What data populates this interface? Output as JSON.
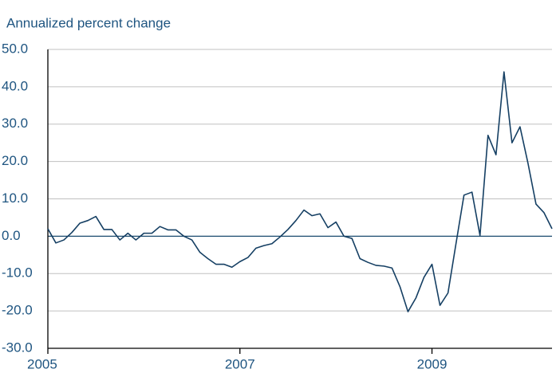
{
  "chart_data": {
    "type": "line",
    "title": "Annualized percent change",
    "categories": [
      "2005",
      null,
      null,
      null,
      null,
      null,
      null,
      null,
      null,
      null,
      null,
      null,
      null,
      null,
      null,
      null,
      null,
      null,
      null,
      null,
      null,
      null,
      null,
      null,
      "2007",
      null,
      null,
      null,
      null,
      null,
      null,
      null,
      null,
      null,
      null,
      null,
      null,
      null,
      null,
      null,
      null,
      null,
      null,
      null,
      null,
      null,
      null,
      null,
      "2009",
      null,
      null,
      null,
      null,
      null,
      null,
      null,
      null,
      null,
      null,
      null,
      null,
      null,
      null,
      null
    ],
    "values": [
      2,
      -1.8,
      -1,
      1,
      3.5,
      4.2,
      5.3,
      1.8,
      1.8,
      -1,
      0.8,
      -1,
      0.8,
      0.8,
      2.6,
      1.7,
      1.7,
      0,
      -1,
      -4.3,
      -6,
      -7.5,
      -7.5,
      -8.3,
      -6.8,
      -5.7,
      -3.2,
      -2.5,
      -2,
      -0.2,
      1.8,
      4.2,
      7,
      5.5,
      6,
      2.3,
      3.8,
      0,
      -0.6,
      -6,
      -7,
      -7.8,
      -8,
      -8.5,
      -13.5,
      -20.2,
      -16.5,
      -11,
      -7.5,
      -18.5,
      -15.2,
      -2,
      11,
      11.8,
      0.2,
      27,
      21.8,
      44,
      25,
      29.3,
      19.5,
      8.6,
      6.3,
      2
    ],
    "color": "#153f63",
    "ylim": [
      -30,
      50
    ],
    "yticks": [
      {
        "value": -30,
        "label": "-30.0"
      },
      {
        "value": -20,
        "label": "-20.0"
      },
      {
        "value": -10,
        "label": "-10.0"
      },
      {
        "value": 0,
        "label": "0.0"
      },
      {
        "value": 10,
        "label": "10.0"
      },
      {
        "value": 20,
        "label": "20.0"
      },
      {
        "value": 30,
        "label": "30.0"
      },
      {
        "value": 40,
        "label": "40.0"
      },
      {
        "value": 50,
        "label": "50.0"
      }
    ],
    "grid": true
  }
}
